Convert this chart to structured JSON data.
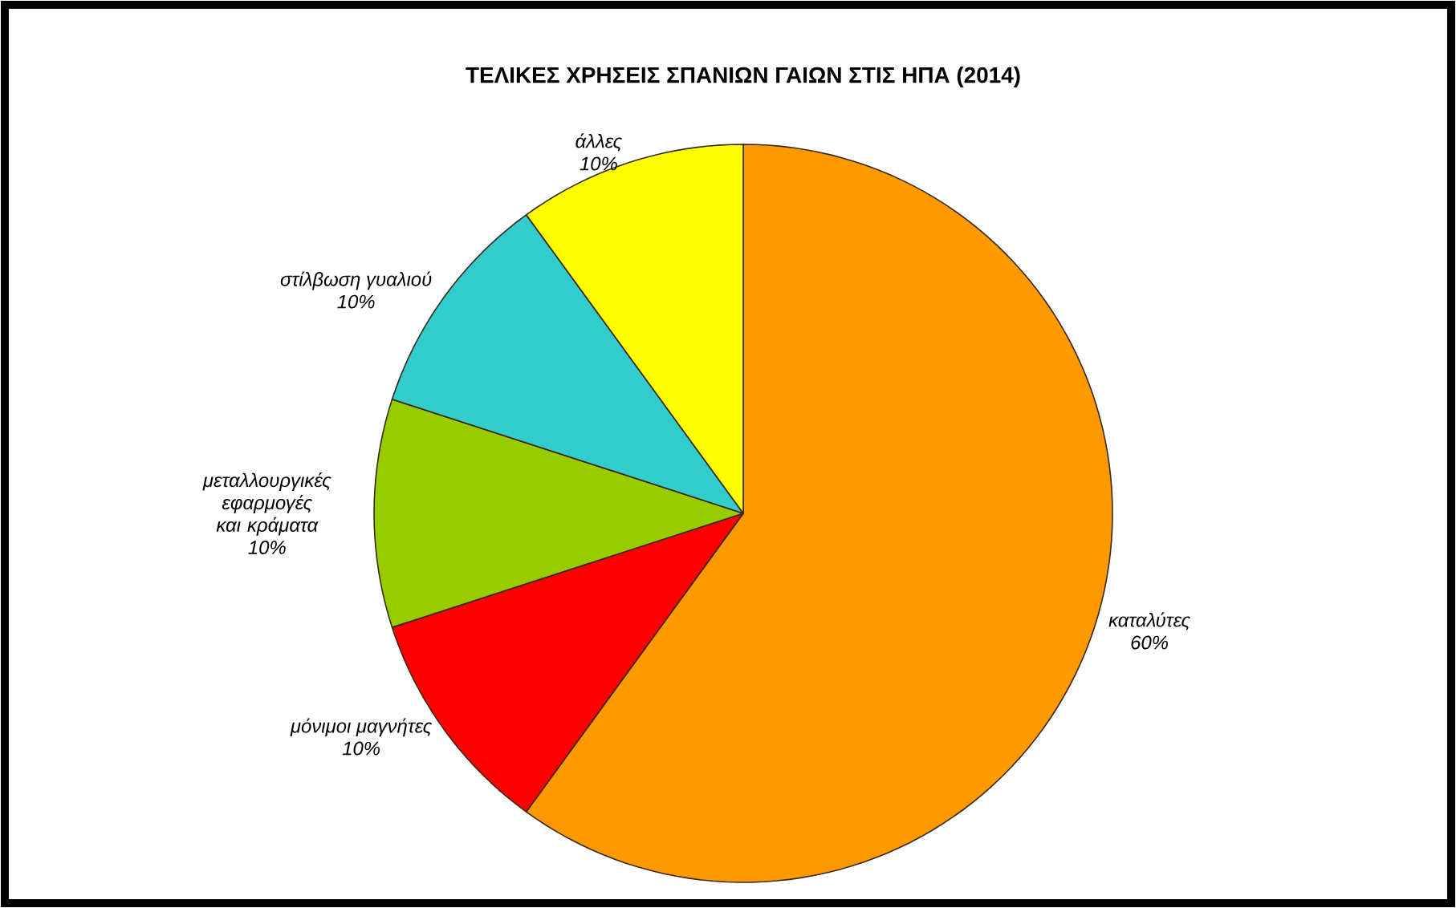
{
  "chart_data": {
    "type": "pie",
    "title": "ΤΕΛΙΚΕΣ ΧΡΗΣΕΙΣ ΣΠΑΝΙΩΝ ΓΑΙΩΝ ΣΤΙΣ ΗΠΑ (2014)",
    "categories": [
      "καταλύτες",
      "μόνιμοι μαγνήτες",
      "μεταλλουργικές εφαρμογές και κράματα",
      "στίλβωση γυαλιού",
      "άλλες"
    ],
    "values": [
      60,
      10,
      10,
      10,
      10
    ],
    "value_labels": [
      "60%",
      "10%",
      "10%",
      "10%",
      "10%"
    ],
    "colors": [
      "#ff9900",
      "#ff0000",
      "#99cc00",
      "#33cccc",
      "#ffff00"
    ]
  }
}
